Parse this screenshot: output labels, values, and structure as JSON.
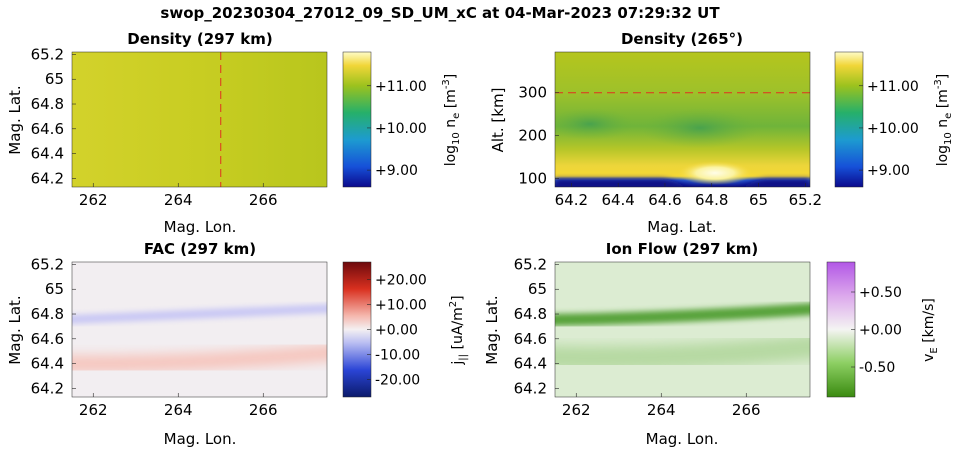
{
  "figure_title": "swop_20230304_27012_09_SD_UM_xC at 04-Mar-2023 07:29:32 UT",
  "chart_data": [
    {
      "type": "heatmap",
      "title": "Density (297 km)",
      "xlabel": "Mag. Lon.",
      "ylabel": "Mag. Lat.",
      "xlim": [
        261.5,
        267.5
      ],
      "ylim": [
        64.13,
        65.22
      ],
      "xticks": [
        262,
        264,
        266
      ],
      "xtick_labels": [
        "262",
        "264",
        "266"
      ],
      "yticks": [
        64.2,
        64.4,
        64.6,
        64.8,
        65.0,
        65.2
      ],
      "ytick_labels": [
        "64.2",
        "64.4",
        "64.6",
        "64.8",
        "65",
        "65.2"
      ],
      "marker_line": {
        "axis": "x",
        "value": 265,
        "style": "dashed",
        "color": "#e03020"
      },
      "colorbar": {
        "label": "log10 ne [m-3]",
        "colormap": "parula-like (blue-green-yellow)",
        "range": [
          8.6,
          11.8
        ],
        "ticks": [
          11.0,
          10.0,
          9.0
        ],
        "tick_labels": [
          "+11.00",
          "+10.00",
          "+9.00"
        ]
      },
      "field_description": "nearly uniform, about 11.0-11.2, slightly higher at low longitude"
    },
    {
      "type": "heatmap",
      "title": "Density (265°)",
      "xlabel": "Mag. Lat.",
      "ylabel": "Alt. [km]",
      "xlim": [
        64.13,
        65.22
      ],
      "ylim": [
        80,
        395
      ],
      "xticks": [
        64.2,
        64.4,
        64.6,
        64.8,
        65.0,
        65.2
      ],
      "xtick_labels": [
        "64.2",
        "64.4",
        "64.6",
        "64.8",
        "65",
        "65.2"
      ],
      "yticks": [
        100,
        200,
        300
      ],
      "ytick_labels": [
        "100",
        "200",
        "300"
      ],
      "marker_line": {
        "axis": "y",
        "value": 300,
        "style": "dashed",
        "color": "#e03020"
      },
      "colorbar": {
        "label": "log10 ne [m-3]",
        "colormap": "parula-like (blue-green-yellow)",
        "range": [
          8.6,
          11.8
        ],
        "ticks": [
          11.0,
          10.0,
          9.0
        ],
        "tick_labels": [
          "+11.00",
          "+10.00",
          "+9.00"
        ]
      },
      "field_description": "peak (~11.6) near 110 km, maximum around lat 64.8; depleted blue layer below ~90 km; values ~10.5 around 200 km"
    },
    {
      "type": "heatmap",
      "title": "FAC (297 km)",
      "xlabel": "Mag. Lon.",
      "ylabel": "Mag. Lat.",
      "xlim": [
        261.5,
        267.5
      ],
      "ylim": [
        64.13,
        65.22
      ],
      "xticks": [
        262,
        264,
        266
      ],
      "xtick_labels": [
        "262",
        "264",
        "266"
      ],
      "yticks": [
        64.2,
        64.4,
        64.6,
        64.8,
        65.0,
        65.2
      ],
      "ytick_labels": [
        "64.2",
        "64.4",
        "64.6",
        "64.8",
        "65",
        "65.2"
      ],
      "colorbar": {
        "label": "j|| [uA/m2]",
        "colormap": "blue-white-red",
        "range": [
          -27,
          27
        ],
        "ticks": [
          20,
          10,
          0,
          -10,
          -20
        ],
        "tick_labels": [
          "+20.00",
          "+10.00",
          "+0.00",
          "-10.00",
          "-20.00"
        ]
      },
      "bands": [
        {
          "sign": "negative",
          "peak": -4,
          "lat_at_left": 64.75,
          "lat_at_right": 64.85
        },
        {
          "sign": "positive",
          "peak": 4,
          "lat_at_left": 64.4,
          "lat_at_right": 64.5
        }
      ]
    },
    {
      "type": "heatmap",
      "title": "Ion Flow (297 km)",
      "xlabel": "Mag. Lon.",
      "ylabel": "Mag. Lat.",
      "xlim": [
        261.5,
        267.5
      ],
      "ylim": [
        64.13,
        65.22
      ],
      "xticks": [
        262,
        264,
        266
      ],
      "xtick_labels": [
        "262",
        "264",
        "266"
      ],
      "yticks": [
        64.2,
        64.4,
        64.6,
        64.8,
        65.0,
        65.2
      ],
      "ytick_labels": [
        "64.2",
        "64.4",
        "64.6",
        "64.8",
        "65",
        "65.2"
      ],
      "colorbar": {
        "label": "vE [km/s]",
        "colormap": "green-white-purple",
        "range": [
          -0.9,
          0.9
        ],
        "ticks": [
          0.5,
          0.0,
          -0.5
        ],
        "tick_labels": [
          "+0.50",
          "+0.00",
          "-0.50"
        ]
      },
      "bands": [
        {
          "sign": "negative",
          "peak": -0.55,
          "lat_at_left": 64.75,
          "lat_at_right": 64.85
        },
        {
          "sign": "negative",
          "peak": -0.25,
          "lat_at_left": 64.45,
          "lat_at_right": 64.55
        }
      ]
    }
  ]
}
